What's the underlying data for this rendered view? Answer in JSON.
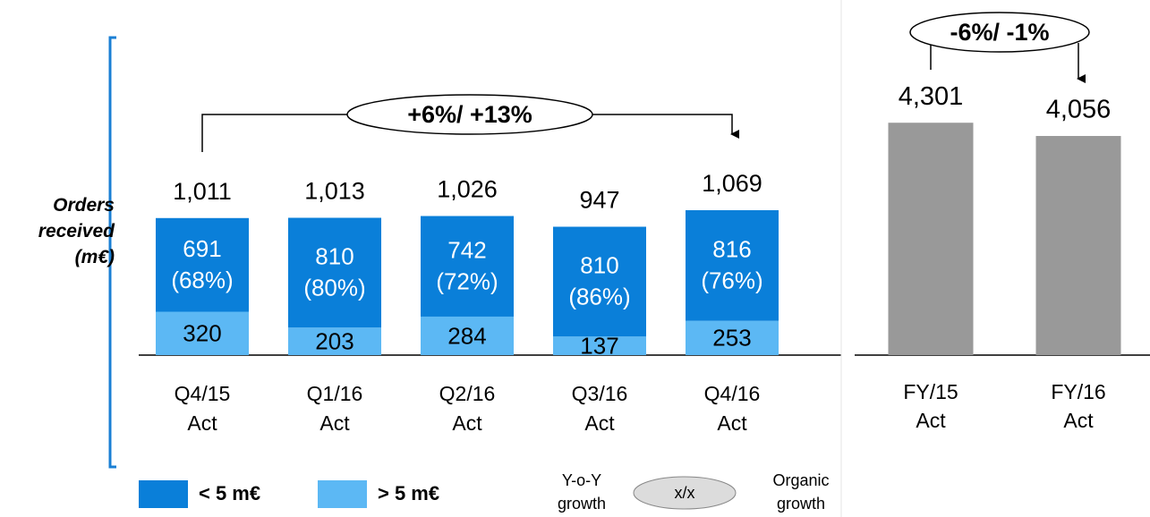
{
  "chart_data": [
    {
      "type": "stacked_bar",
      "ylabel": "Orders\nreceived\n(m€)",
      "categories": [
        "Q4/15\nAct",
        "Q1/16\nAct",
        "Q2/16\nAct",
        "Q3/16\nAct",
        "Q4/16\nAct"
      ],
      "series": [
        {
          "name": "< 5 m€",
          "color": "#0a7fd9",
          "values": [
            691,
            810,
            742,
            810,
            816
          ]
        },
        {
          "name": "> 5 m€",
          "color": "#5cb8f4",
          "values": [
            320,
            203,
            284,
            137,
            253
          ]
        }
      ],
      "shares": [
        68,
        80,
        72,
        86,
        76
      ],
      "share_labels": [
        "(68%)",
        "(80%)",
        "(72%)",
        "(86%)",
        "(76%)"
      ],
      "totals": [
        1011,
        1013,
        1026,
        947,
        1069
      ],
      "total_labels": [
        "1,011",
        "1,013",
        "1,026",
        "947",
        "1,069"
      ],
      "ylim": [
        0,
        1300
      ],
      "annotation": "+6%/ +13%",
      "growth_key": {
        "left": "Y-o-Y\ngrowth",
        "center": "x/x",
        "right": "Organic\ngrowth"
      }
    },
    {
      "type": "bar",
      "categories": [
        "FY/15\nAct",
        "FY/16\nAct"
      ],
      "values": [
        4301,
        4056
      ],
      "value_labels": [
        "4,301",
        "4,056"
      ],
      "color": "#999999",
      "ylim": [
        0,
        5000
      ],
      "annotation": "-6%/ -1%"
    }
  ]
}
